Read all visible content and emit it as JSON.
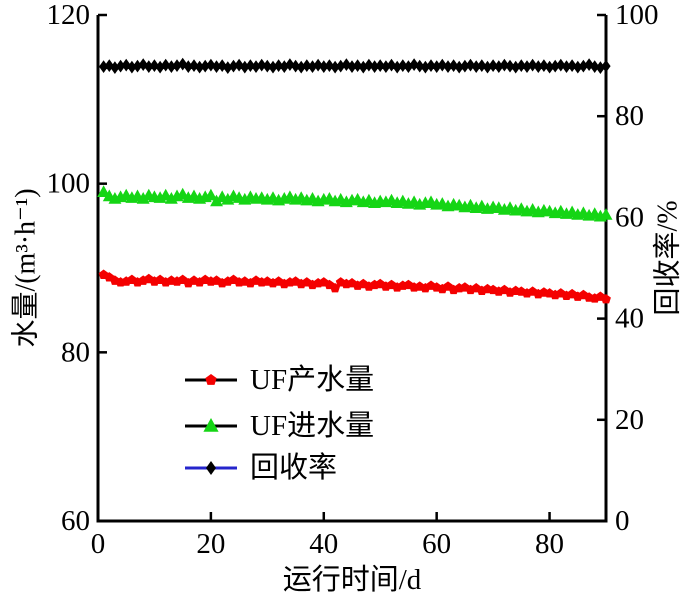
{
  "chart_data": {
    "type": "line",
    "title": "",
    "xlabel": "运行时间/d",
    "ylabel_left": "水量/(m³·h⁻¹)",
    "ylabel_right": "回收率/%",
    "xlim": [
      0,
      90
    ],
    "ylim_left": [
      60,
      120
    ],
    "ylim_right": [
      0,
      100
    ],
    "xticks": [
      0,
      20,
      40,
      60,
      80
    ],
    "yticks_left": [
      60,
      80,
      100,
      120
    ],
    "yticks_right": [
      0,
      20,
      40,
      60,
      80,
      100
    ],
    "grid": false,
    "legend_position": "inside-lower-left",
    "axis_color": "#000000",
    "series": [
      {
        "name": "UF产水量",
        "axis": "left",
        "marker": "pentagon",
        "marker_color": "#f40000",
        "line_color": "#000000",
        "x_start": 1,
        "x_step": 1,
        "values": [
          89.2,
          88.9,
          88.5,
          88.3,
          88.4,
          88.6,
          88.3,
          88.5,
          88.7,
          88.4,
          88.6,
          88.3,
          88.5,
          88.4,
          88.6,
          88.2,
          88.5,
          88.3,
          88.6,
          88.4,
          88.5,
          88.2,
          88.4,
          88.6,
          88.3,
          88.4,
          88.2,
          88.5,
          88.3,
          88.4,
          88.2,
          88.4,
          88.1,
          88.3,
          88.4,
          88.1,
          88.3,
          88.0,
          88.2,
          88.3,
          88.0,
          87.6,
          88.3,
          88.1,
          88.2,
          87.9,
          88.1,
          87.8,
          88.0,
          88.1,
          87.8,
          88.0,
          87.7,
          87.9,
          88.0,
          87.7,
          87.8,
          87.6,
          87.9,
          87.7,
          87.5,
          87.8,
          87.4,
          87.6,
          87.7,
          87.4,
          87.6,
          87.3,
          87.5,
          87.4,
          87.2,
          87.4,
          87.1,
          87.3,
          87.2,
          87.0,
          87.2,
          86.9,
          87.1,
          87.0,
          86.8,
          87.0,
          86.7,
          86.9,
          86.6,
          86.8,
          86.5,
          86.4,
          86.6,
          86.3
        ]
      },
      {
        "name": "UF进水量",
        "axis": "left",
        "marker": "triangle-up",
        "marker_color": "#15d515",
        "line_color": "#000000",
        "x_start": 1,
        "x_step": 1,
        "values": [
          99.0,
          98.5,
          98.2,
          98.4,
          98.6,
          98.3,
          98.5,
          98.2,
          98.6,
          98.4,
          98.3,
          98.6,
          98.2,
          98.5,
          98.7,
          98.3,
          98.5,
          98.2,
          98.4,
          98.6,
          97.9,
          98.4,
          98.1,
          98.5,
          98.3,
          98.1,
          98.4,
          98.2,
          98.3,
          98.1,
          98.3,
          98.0,
          98.2,
          98.4,
          98.1,
          98.3,
          98.0,
          98.2,
          97.9,
          98.1,
          98.2,
          97.9,
          98.1,
          97.8,
          98.0,
          98.1,
          97.8,
          98.0,
          97.7,
          97.9,
          97.8,
          98.0,
          97.7,
          97.9,
          97.6,
          97.8,
          97.5,
          97.7,
          97.8,
          97.5,
          97.6,
          97.3,
          97.5,
          97.4,
          97.2,
          97.4,
          97.1,
          97.3,
          97.0,
          97.2,
          97.1,
          96.9,
          97.1,
          96.8,
          97.0,
          96.7,
          96.9,
          96.6,
          96.8,
          96.7,
          96.5,
          96.7,
          96.4,
          96.6,
          96.3,
          96.5,
          96.2,
          96.4,
          96.1,
          96.3
        ]
      },
      {
        "name": "回收率",
        "axis": "right",
        "marker": "diamond",
        "marker_color": "#000000",
        "line_color": "#2525cc",
        "x_start": 1,
        "x_step": 1,
        "values": [
          89.8,
          90.0,
          89.6,
          89.9,
          90.1,
          89.7,
          89.9,
          90.2,
          89.8,
          90.0,
          89.7,
          90.1,
          89.8,
          90.0,
          90.3,
          89.8,
          90.0,
          89.7,
          89.9,
          90.1,
          89.8,
          90.0,
          89.6,
          89.9,
          90.1,
          89.7,
          90.0,
          89.8,
          90.1,
          89.9,
          89.7,
          90.0,
          89.8,
          90.2,
          89.9,
          89.7,
          90.0,
          89.8,
          90.1,
          89.8,
          90.0,
          89.7,
          89.9,
          90.2,
          89.8,
          90.0,
          89.7,
          90.1,
          89.8,
          90.0,
          89.8,
          90.1,
          89.7,
          90.0,
          89.8,
          90.2,
          89.9,
          89.7,
          90.0,
          89.8,
          90.1,
          89.8,
          90.0,
          89.7,
          89.9,
          90.1,
          89.8,
          90.0,
          89.7,
          90.0,
          89.8,
          90.1,
          89.9,
          89.7,
          90.0,
          89.8,
          90.1,
          89.8,
          90.0,
          89.7,
          89.9,
          90.1,
          89.8,
          90.0,
          89.7,
          89.9,
          90.2,
          89.8,
          89.6,
          89.9
        ]
      }
    ]
  }
}
